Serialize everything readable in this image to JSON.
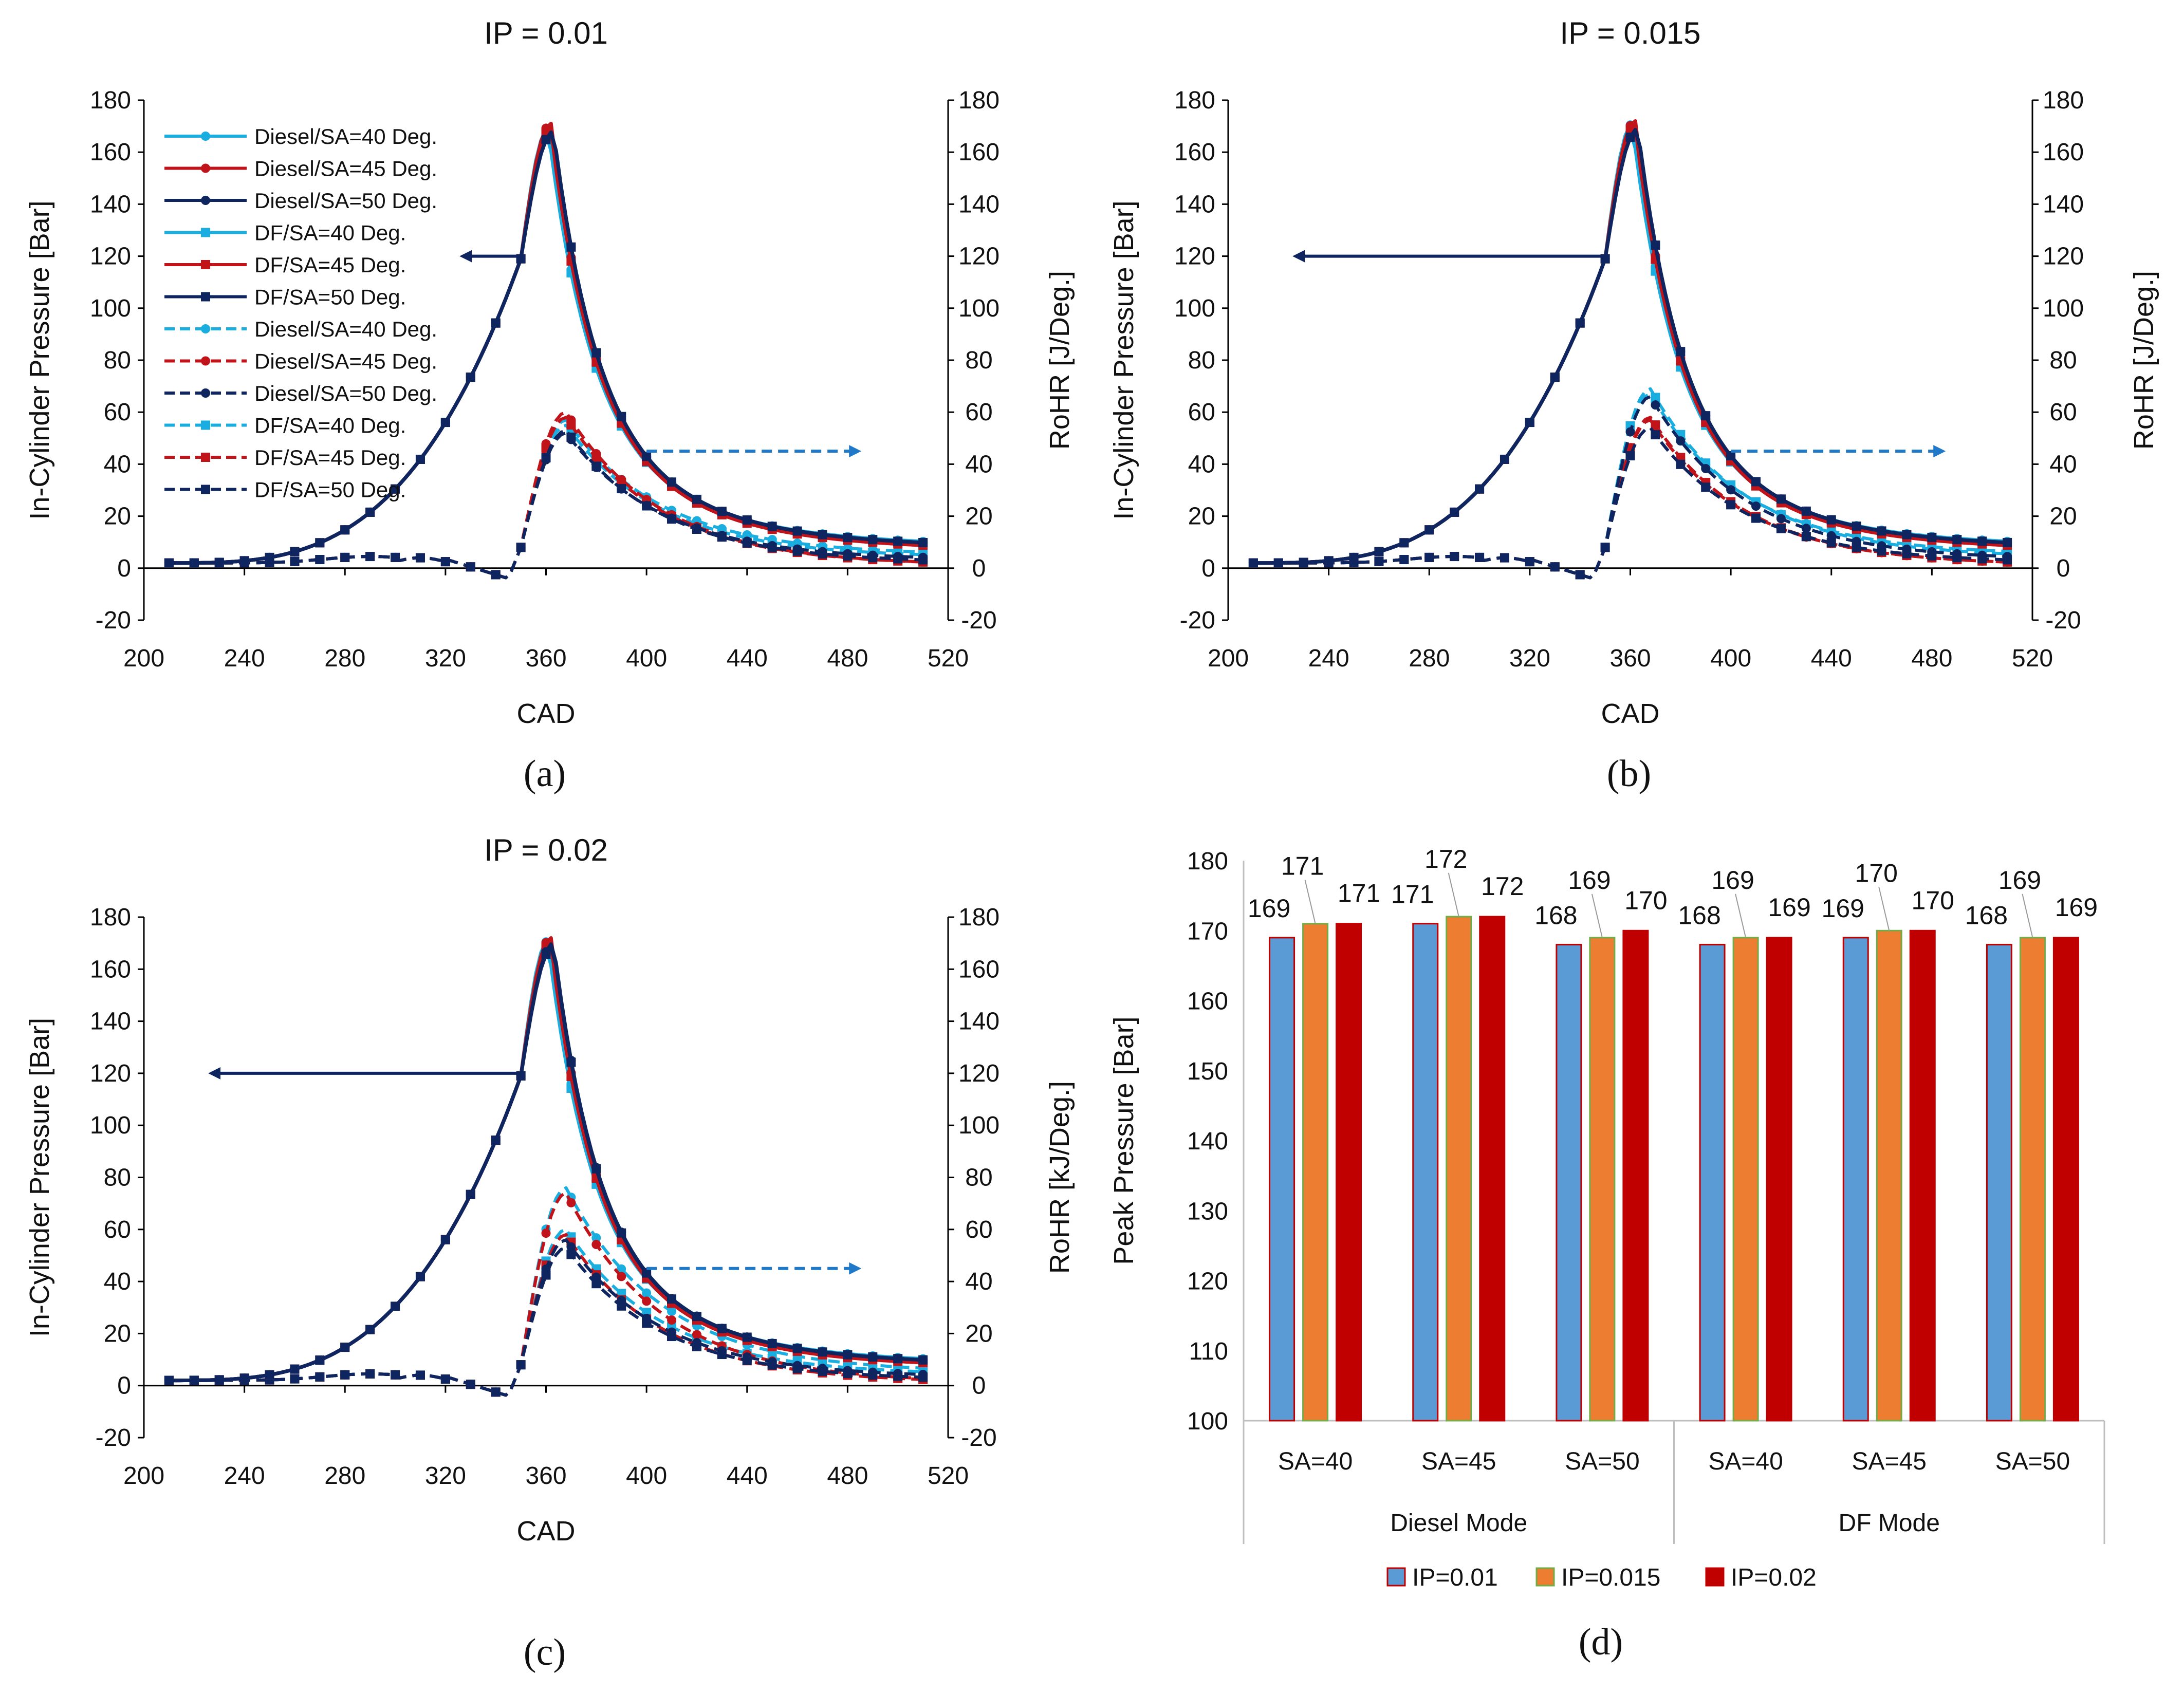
{
  "captions": [
    "(a)",
    "(b)",
    "(c)",
    "(d)"
  ],
  "colors": {
    "sa40": "#1aaee0",
    "sa45": "#c0141a",
    "sa50": "#0f2560",
    "arrow_left": "#0f2560",
    "arrow_right": "#1f78c8",
    "bar_ip001": "#5b9bd5",
    "bar_ip0015": "#ed7d31",
    "bar_ip002": "#c00000"
  },
  "chart_data": [
    {
      "id": "a",
      "type": "line",
      "title": "IP = 0.01",
      "xlabel": "CAD",
      "ylabel": "In-Cylinder Pressure [Bar]",
      "ylabel_right": "RoHR [J/Deg.]",
      "xlim": [
        200,
        520
      ],
      "xticks": [
        200,
        240,
        280,
        320,
        360,
        400,
        440,
        480,
        520
      ],
      "ylim": [
        -20,
        180
      ],
      "yticks": [
        -20,
        0,
        20,
        40,
        60,
        80,
        100,
        120,
        140,
        160,
        180
      ],
      "y2lim": [
        -20,
        180
      ],
      "y2ticks": [
        -20,
        0,
        20,
        40,
        60,
        80,
        100,
        120,
        140,
        160,
        180
      ],
      "legend_position": "top-left",
      "legend": [
        "Diesel/SA=40 Deg.",
        "Diesel/SA=45 Deg.",
        "Diesel/SA=50 Deg.",
        "DF/SA=40 Deg.",
        "DF/SA=45 Deg.",
        "DF/SA=50 Deg.",
        "Diesel/SA=40 Deg.",
        "Diesel/SA=45 Deg.",
        "Diesel/SA=50 Deg.",
        "DF/SA=40 Deg.",
        "DF/SA=45 Deg.",
        "DF/SA=50 Deg."
      ],
      "arrows": [
        {
          "direction": "left",
          "from": [
            350,
            120
          ],
          "to": [
            330,
            120
          ]
        },
        {
          "direction": "right",
          "from": [
            400,
            45
          ],
          "to": [
            485,
            45
          ]
        }
      ],
      "pressure_peaks": [
        169,
        171,
        168,
        168,
        169,
        168
      ],
      "rohr_peaks": [
        57,
        60,
        52,
        55,
        58,
        53
      ]
    },
    {
      "id": "b",
      "type": "line",
      "title": "IP = 0.015",
      "xlabel": "CAD",
      "ylabel": "In-Cylinder Pressure [Bar]",
      "ylabel_right": "RoHR [J/Deg.]",
      "xlim": [
        200,
        520
      ],
      "xticks": [
        200,
        240,
        280,
        320,
        360,
        400,
        440,
        480,
        520
      ],
      "ylim": [
        -20,
        180
      ],
      "yticks": [
        -20,
        0,
        20,
        40,
        60,
        80,
        100,
        120,
        140,
        160,
        180
      ],
      "y2lim": [
        -20,
        180
      ],
      "y2ticks": [
        -20,
        0,
        20,
        40,
        60,
        80,
        100,
        120,
        140,
        160,
        180
      ],
      "arrows": [
        {
          "direction": "left",
          "from": [
            350,
            120
          ],
          "to": [
            230,
            120
          ]
        },
        {
          "direction": "right",
          "from": [
            400,
            45
          ],
          "to": [
            485,
            45
          ]
        }
      ],
      "pressure_peaks": [
        171,
        172,
        169,
        169,
        170,
        169
      ],
      "rohr_peaks": [
        67,
        57,
        66,
        69,
        58,
        54
      ]
    },
    {
      "id": "c",
      "type": "line",
      "title": "IP = 0.02",
      "xlabel": "CAD",
      "ylabel": "In-Cylinder Pressure [Bar]",
      "ylabel_right": "RoHR [kJ/Deg.]",
      "xlim": [
        200,
        520
      ],
      "xticks": [
        200,
        240,
        280,
        320,
        360,
        400,
        440,
        480,
        520
      ],
      "ylim": [
        -20,
        180
      ],
      "yticks": [
        -20,
        0,
        20,
        40,
        60,
        80,
        100,
        120,
        140,
        160,
        180
      ],
      "y2lim": [
        -20,
        180
      ],
      "y2ticks": [
        -20,
        0,
        20,
        40,
        60,
        80,
        100,
        120,
        140,
        160,
        180
      ],
      "arrows": [
        {
          "direction": "left",
          "from": [
            350,
            120
          ],
          "to": [
            230,
            120
          ]
        },
        {
          "direction": "right",
          "from": [
            400,
            45
          ],
          "to": [
            485,
            45
          ]
        }
      ],
      "pressure_peaks": [
        171,
        172,
        170,
        169,
        170,
        169
      ],
      "rohr_peaks": [
        76,
        74,
        56,
        60,
        58,
        53
      ]
    },
    {
      "id": "d",
      "type": "bar",
      "ylabel": "Peak Pressure [Bar]",
      "ylim": [
        100,
        180
      ],
      "yticks": [
        100,
        110,
        120,
        130,
        140,
        150,
        160,
        170,
        180
      ],
      "groups": [
        "Diesel Mode",
        "DF Mode"
      ],
      "categories": [
        "SA=40",
        "SA=45",
        "SA=50",
        "SA=40",
        "SA=45",
        "SA=50"
      ],
      "series": [
        {
          "name": "IP=0.01",
          "values": [
            169,
            171,
            168,
            168,
            169,
            168
          ]
        },
        {
          "name": "IP=0.015",
          "values": [
            171,
            172,
            169,
            169,
            170,
            169
          ]
        },
        {
          "name": "IP=0.02",
          "values": [
            171,
            172,
            170,
            169,
            170,
            169
          ]
        }
      ],
      "legend_position": "bottom-center"
    }
  ]
}
